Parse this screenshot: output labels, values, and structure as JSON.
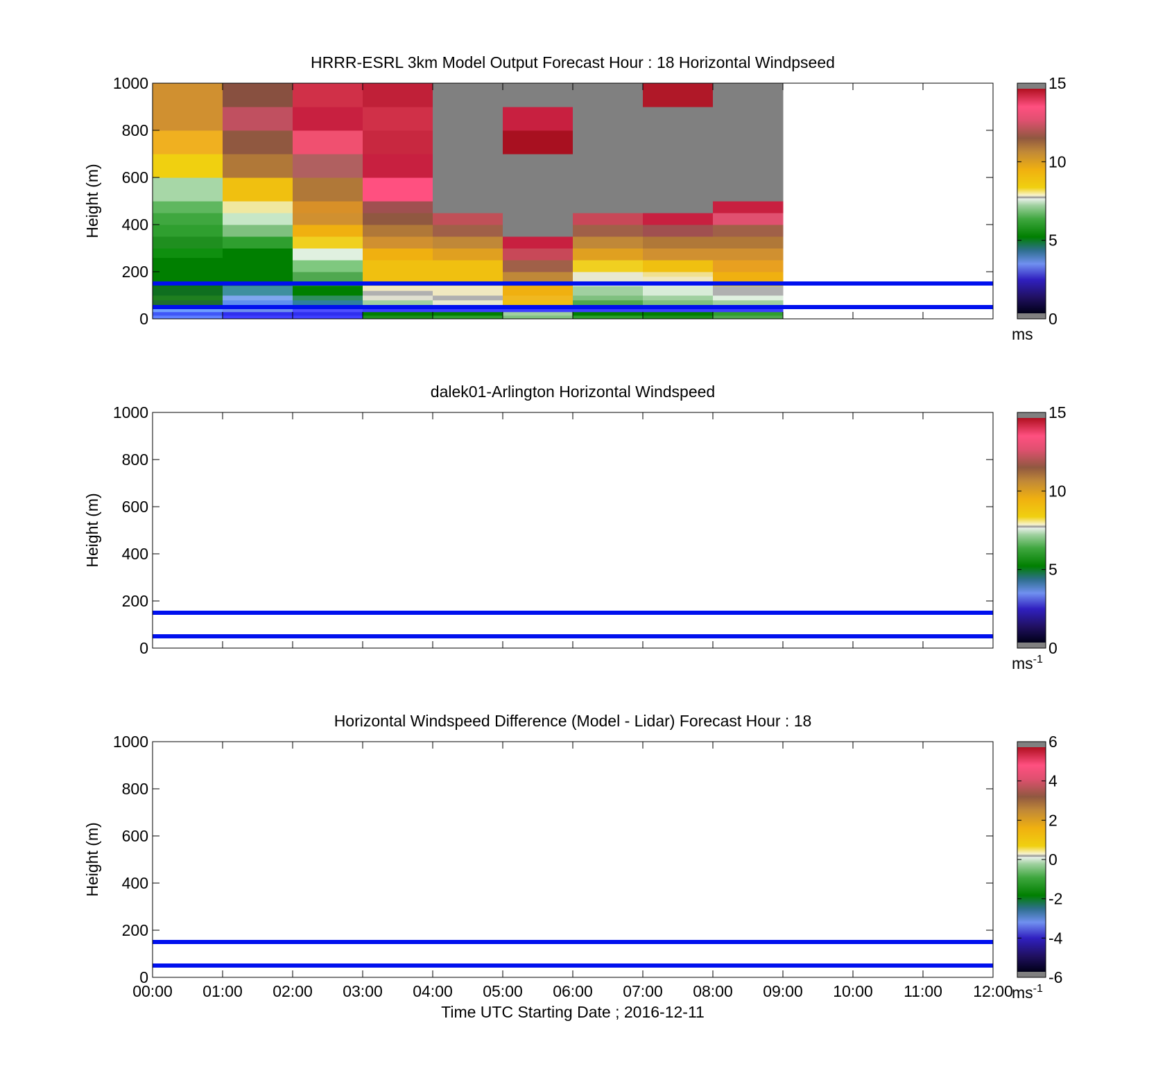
{
  "chart_data": [
    {
      "type": "heatmap",
      "title": "HRRR-ESRL 3km Model Output   Forecast Hour : 18 Horizontal Windpseed",
      "ylabel": "Height (m)",
      "xlabel": "",
      "xlim": [
        0,
        12
      ],
      "ylim": [
        0,
        1000
      ],
      "x_ticks": [
        "00:00",
        "01:00",
        "02:00",
        "03:00",
        "04:00",
        "05:00",
        "06:00",
        "07:00",
        "08:00",
        "09:00",
        "10:00",
        "11:00",
        "12:00"
      ],
      "y_ticks": [
        "0",
        "200",
        "400",
        "600",
        "800",
        "1000"
      ],
      "show_x_tick_labels": false,
      "reference_lines_m": [
        50,
        150
      ],
      "reference_line_color": "#0010ee",
      "colorbar": {
        "ticks": [
          "0",
          "5",
          "10",
          "15"
        ],
        "range": [
          0,
          15
        ],
        "unit": "ms",
        "unit_sup": ""
      },
      "no_data_color": "#808080",
      "cells": [
        {
          "col": 0,
          "bands": [
            [
              0,
              15,
              "#5f7fff"
            ],
            [
              15,
              30,
              "#3f57f7"
            ],
            [
              30,
              50,
              "#6f9fff"
            ],
            [
              50,
              60,
              "#3f7fb7"
            ],
            [
              60,
              80,
              "#1f6f2f"
            ],
            [
              80,
              100,
              "#1f7f1f"
            ],
            [
              100,
              140,
              "#0f6f1f"
            ],
            [
              140,
              260,
              "#007f00"
            ],
            [
              260,
              300,
              "#0f8f0f"
            ],
            [
              300,
              350,
              "#1f8f1f"
            ],
            [
              350,
              400,
              "#2f9f2f"
            ],
            [
              400,
              450,
              "#3fa73f"
            ],
            [
              450,
              500,
              "#5fb75f"
            ],
            [
              500,
              600,
              "#a7d7a7"
            ],
            [
              600,
              700,
              "#f0d010"
            ],
            [
              700,
              800,
              "#f0b020"
            ],
            [
              800,
              1000,
              "#d09030"
            ]
          ]
        },
        {
          "col": 1,
          "bands": [
            [
              0,
              15,
              "#3f3fff"
            ],
            [
              15,
              30,
              "#2f2fef"
            ],
            [
              30,
              50,
              "#6f8fef"
            ],
            [
              50,
              60,
              "#4f7fcf"
            ],
            [
              60,
              80,
              "#5f8fef"
            ],
            [
              80,
              100,
              "#7fa7ef"
            ],
            [
              100,
              140,
              "#3f8f9f"
            ],
            [
              140,
              160,
              "#2f7f6f"
            ],
            [
              160,
              300,
              "#007f00"
            ],
            [
              300,
              350,
              "#2f9f2f"
            ],
            [
              350,
              400,
              "#7fc07f"
            ],
            [
              400,
              450,
              "#c7e7c7"
            ],
            [
              450,
              500,
              "#f0e8a0"
            ],
            [
              500,
              600,
              "#f0c010"
            ],
            [
              600,
              700,
              "#b07838"
            ],
            [
              700,
              800,
              "#905840"
            ],
            [
              800,
              900,
              "#c05060"
            ],
            [
              900,
              1000,
              "#885040"
            ]
          ]
        },
        {
          "col": 2,
          "bands": [
            [
              0,
              15,
              "#3f3fff"
            ],
            [
              15,
              30,
              "#2f2fef"
            ],
            [
              30,
              50,
              "#4f4fff"
            ],
            [
              50,
              60,
              "#6f8fef"
            ],
            [
              60,
              80,
              "#2f7f9f"
            ],
            [
              80,
              100,
              "#2f8f5f"
            ],
            [
              100,
              140,
              "#007f00"
            ],
            [
              140,
              160,
              "#1f8f1f"
            ],
            [
              160,
              200,
              "#4fa84f"
            ],
            [
              200,
              250,
              "#7fc87f"
            ],
            [
              250,
              300,
              "#e0f0e0"
            ],
            [
              300,
              350,
              "#f0d020"
            ],
            [
              350,
              400,
              "#f0b010"
            ],
            [
              400,
              450,
              "#d09030"
            ],
            [
              450,
              500,
              "#d89028"
            ],
            [
              500,
              600,
              "#b07838"
            ],
            [
              600,
              700,
              "#b06060"
            ],
            [
              700,
              800,
              "#f05070"
            ],
            [
              800,
              900,
              "#c82040"
            ],
            [
              900,
              1000,
              "#d03048"
            ]
          ]
        },
        {
          "col": 3,
          "bands": [
            [
              0,
              15,
              "#1f8f1f"
            ],
            [
              15,
              30,
              "#007f00"
            ],
            [
              30,
              50,
              "#3f3fff"
            ],
            [
              50,
              60,
              "#4f8f6f"
            ],
            [
              60,
              80,
              "#a0d0a0"
            ],
            [
              80,
              100,
              "#e0e0d0"
            ],
            [
              100,
              120,
              "#b0b0b0"
            ],
            [
              120,
              140,
              "#f0e8c0"
            ],
            [
              140,
              160,
              "#f0e080"
            ],
            [
              160,
              250,
              "#f0c010"
            ],
            [
              250,
              300,
              "#f0b010"
            ],
            [
              300,
              350,
              "#d09030"
            ],
            [
              350,
              400,
              "#b07838"
            ],
            [
              400,
              450,
              "#905840"
            ],
            [
              450,
              500,
              "#a05050"
            ],
            [
              500,
              600,
              "#ff5080"
            ],
            [
              600,
              700,
              "#c82040"
            ],
            [
              700,
              800,
              "#c82840"
            ],
            [
              800,
              900,
              "#d03048"
            ],
            [
              900,
              1000,
              "#c02038"
            ]
          ]
        },
        {
          "col": 4,
          "bands": [
            [
              0,
              15,
              "#2f9f2f"
            ],
            [
              15,
              30,
              "#007f00"
            ],
            [
              30,
              50,
              "#3f3fff"
            ],
            [
              50,
              60,
              "#a0d0a0"
            ],
            [
              60,
              80,
              "#e8e8d0"
            ],
            [
              80,
              100,
              "#b0b0b0"
            ],
            [
              100,
              140,
              "#f0e8c0"
            ],
            [
              140,
              160,
              "#f0e090"
            ],
            [
              160,
              250,
              "#f0c010"
            ],
            [
              250,
              300,
              "#e0a020"
            ],
            [
              300,
              350,
              "#c08838"
            ],
            [
              350,
              400,
              "#a06048"
            ],
            [
              400,
              450,
              "#c05058"
            ],
            [
              450,
              1000,
              "#808080"
            ]
          ]
        },
        {
          "col": 5,
          "bands": [
            [
              0,
              15,
              "#7fc07f"
            ],
            [
              15,
              30,
              "#a0d0a0"
            ],
            [
              30,
              50,
              "#3f3fff"
            ],
            [
              50,
              60,
              "#f0c010"
            ],
            [
              60,
              80,
              "#f0c010"
            ],
            [
              80,
              100,
              "#f0b820"
            ],
            [
              100,
              140,
              "#f0b010"
            ],
            [
              140,
              160,
              "#e0a020"
            ],
            [
              160,
              200,
              "#c08838"
            ],
            [
              200,
              250,
              "#a06048"
            ],
            [
              250,
              300,
              "#c84858"
            ],
            [
              300,
              350,
              "#c82040"
            ],
            [
              350,
              700,
              "#808080"
            ],
            [
              700,
              800,
              "#a81020"
            ],
            [
              800,
              900,
              "#c82040"
            ],
            [
              900,
              1000,
              "#808080"
            ]
          ]
        },
        {
          "col": 6,
          "bands": [
            [
              0,
              15,
              "#2f9f2f"
            ],
            [
              15,
              30,
              "#007f00"
            ],
            [
              30,
              50,
              "#3f3fff"
            ],
            [
              50,
              60,
              "#2f8f2f"
            ],
            [
              60,
              80,
              "#4fa84f"
            ],
            [
              80,
              100,
              "#7fc07f"
            ],
            [
              100,
              140,
              "#a0d0a0"
            ],
            [
              140,
              160,
              "#f0f0e0"
            ],
            [
              160,
              200,
              "#e8e8d0"
            ],
            [
              200,
              250,
              "#f0d020"
            ],
            [
              250,
              300,
              "#e0a020"
            ],
            [
              300,
              350,
              "#c08838"
            ],
            [
              350,
              400,
              "#a06048"
            ],
            [
              400,
              450,
              "#c84858"
            ],
            [
              450,
              1000,
              "#808080"
            ]
          ]
        },
        {
          "col": 7,
          "bands": [
            [
              0,
              15,
              "#1f8f1f"
            ],
            [
              15,
              30,
              "#007f00"
            ],
            [
              30,
              50,
              "#3f3fff"
            ],
            [
              50,
              60,
              "#4fa84f"
            ],
            [
              60,
              80,
              "#7fc07f"
            ],
            [
              80,
              100,
              "#a0d0a0"
            ],
            [
              100,
              140,
              "#d8ecd8"
            ],
            [
              140,
              160,
              "#e8f0e8"
            ],
            [
              160,
              180,
              "#f0e8c0"
            ],
            [
              180,
              200,
              "#f0e090"
            ],
            [
              200,
              250,
              "#f0c010"
            ],
            [
              250,
              300,
              "#d09030"
            ],
            [
              300,
              350,
              "#b07838"
            ],
            [
              350,
              400,
              "#a05050"
            ],
            [
              400,
              450,
              "#c82040"
            ],
            [
              450,
              900,
              "#808080"
            ],
            [
              900,
              1000,
              "#b01828"
            ]
          ]
        },
        {
          "col": 8,
          "bands": [
            [
              0,
              15,
              "#4fa84f"
            ],
            [
              15,
              30,
              "#2f9f2f"
            ],
            [
              30,
              50,
              "#3f3fff"
            ],
            [
              50,
              60,
              "#7fc07f"
            ],
            [
              60,
              80,
              "#a0d0a0"
            ],
            [
              80,
              100,
              "#e0f0e0"
            ],
            [
              100,
              140,
              "#b0b0b0"
            ],
            [
              140,
              160,
              "#f0d020"
            ],
            [
              160,
              200,
              "#f0b010"
            ],
            [
              200,
              250,
              "#e8a020"
            ],
            [
              250,
              300,
              "#d09030"
            ],
            [
              300,
              350,
              "#b07838"
            ],
            [
              350,
              400,
              "#a06048"
            ],
            [
              400,
              450,
              "#e05070"
            ],
            [
              450,
              500,
              "#c82040"
            ],
            [
              500,
              1000,
              "#808080"
            ]
          ]
        }
      ]
    },
    {
      "type": "heatmap",
      "title": "dalek01-Arlington  Horizontal Windspeed",
      "ylabel": "Height (m)",
      "xlabel": "",
      "xlim": [
        0,
        12
      ],
      "ylim": [
        0,
        1000
      ],
      "x_ticks": [
        "00:00",
        "01:00",
        "02:00",
        "03:00",
        "04:00",
        "05:00",
        "06:00",
        "07:00",
        "08:00",
        "09:00",
        "10:00",
        "11:00",
        "12:00"
      ],
      "y_ticks": [
        "0",
        "200",
        "400",
        "600",
        "800",
        "1000"
      ],
      "show_x_tick_labels": false,
      "reference_lines_m": [
        50,
        150
      ],
      "reference_line_color": "#0010ee",
      "colorbar": {
        "ticks": [
          "0",
          "5",
          "10",
          "15"
        ],
        "range": [
          0,
          15
        ],
        "unit": "ms",
        "unit_sup": "-1"
      },
      "cells": []
    },
    {
      "type": "heatmap",
      "title": "Horizontal Windspeed Difference (Model - Lidar) Forecast Hour : 18",
      "ylabel": "Height (m)",
      "xlabel": "Time UTC  Starting Date ; 2016-12-11",
      "xlim": [
        0,
        12
      ],
      "ylim": [
        0,
        1000
      ],
      "x_ticks": [
        "00:00",
        "01:00",
        "02:00",
        "03:00",
        "04:00",
        "05:00",
        "06:00",
        "07:00",
        "08:00",
        "09:00",
        "10:00",
        "11:00",
        "12:00"
      ],
      "y_ticks": [
        "0",
        "200",
        "400",
        "600",
        "800",
        "1000"
      ],
      "show_x_tick_labels": true,
      "reference_lines_m": [
        50,
        150
      ],
      "reference_line_color": "#0010ee",
      "colorbar": {
        "ticks": [
          "-6",
          "-4",
          "-2",
          "0",
          "2",
          "4",
          "6"
        ],
        "range": [
          -6,
          6
        ],
        "unit": "ms",
        "unit_sup": "-1"
      },
      "cells": []
    }
  ]
}
